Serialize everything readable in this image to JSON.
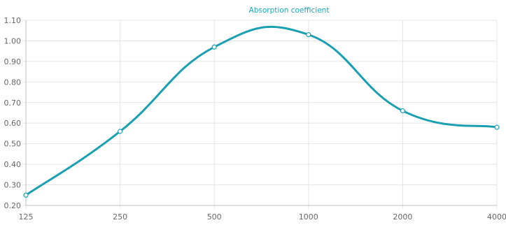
{
  "chart_data": {
    "type": "line",
    "legend": {
      "label": "Absorption coefficient",
      "position": "top"
    },
    "categories": [
      "125",
      "250",
      "500",
      "1000",
      "2000",
      "4000"
    ],
    "series": [
      {
        "name": "Absorption coefficient",
        "values": [
          0.25,
          0.56,
          0.97,
          1.03,
          0.66,
          0.58
        ]
      }
    ],
    "y_ticks": [
      "1.10",
      "1.00",
      "0.90",
      "0.80",
      "0.70",
      "0.60",
      "0.50",
      "0.40",
      "0.30",
      "0.20"
    ],
    "ylim": [
      0.2,
      1.1
    ],
    "grid": true,
    "colors": {
      "line": "#1a9fb0",
      "legend_text": "#1aa8bd",
      "grid": "#e5e5e5",
      "axis": "#bfbfbf"
    }
  }
}
